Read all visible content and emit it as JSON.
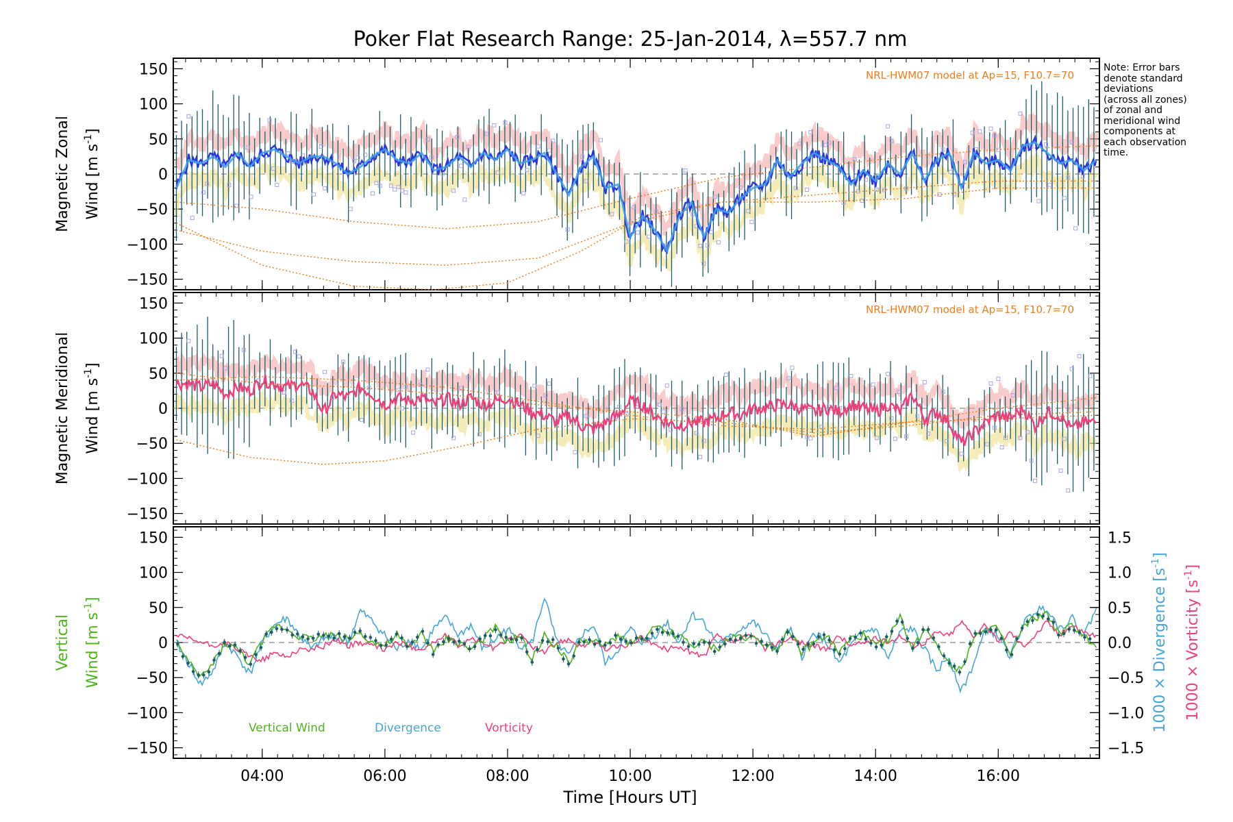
{
  "title": "Poker Flat Research Range: 25-Jan-2014, λ=557.7 nm",
  "note": [
    "Note: Error bars",
    "denote standard",
    "deviations",
    "(across all zones)",
    "of zonal and",
    "meridional wind",
    "components at",
    "each observation",
    "time."
  ],
  "colors": {
    "zonal": "#2a36e0",
    "zonal_light": "#3fa0e8",
    "meridional": "#f0407a",
    "vertical": "#4db51a",
    "divergence": "#45a6d6",
    "vorticity": "#f0407a",
    "model": "#f07d1a",
    "scatter": "#a9a6e6",
    "errorbar": "#1b5c66",
    "uncert_a": "#f5a0a0",
    "uncert_b": "#f0e08a"
  },
  "chart_data": [
    {
      "type": "line",
      "panel": "zonal",
      "ylabel_line1": "Magnetic Zonal",
      "ylabel_line2": "Wind [m s",
      "ylabel_sup": "-1",
      "ylabel_close": "]",
      "ylim": [
        -165,
        165
      ],
      "yticks": [
        -150,
        -100,
        -50,
        0,
        50,
        100,
        150
      ],
      "annotation": "NRL-HWM07 model at Ap=15, F10.7=70",
      "series": [
        {
          "x": [
            2.6,
            2.8,
            3.0,
            3.2,
            3.4,
            3.6,
            3.8,
            4.0,
            4.2,
            4.4,
            4.6,
            4.8,
            5.0,
            5.2,
            5.4,
            5.6,
            5.8,
            6.0,
            6.2,
            6.4,
            6.6,
            6.8,
            7.0,
            7.2,
            7.4,
            7.6,
            7.8,
            8.0,
            8.2,
            8.4,
            8.6,
            8.8,
            9.0,
            9.2,
            9.4,
            9.6,
            9.8,
            10.0,
            10.2,
            10.4,
            10.6,
            10.8,
            11.0,
            11.2,
            11.4,
            11.6,
            11.8,
            12.0,
            12.2,
            12.4,
            12.6,
            12.8,
            13.0,
            13.2,
            13.4,
            13.6,
            13.8,
            14.0,
            14.2,
            14.4,
            14.6,
            14.8,
            15.0,
            15.2,
            15.4,
            15.6,
            15.8,
            16.0,
            16.2,
            16.4,
            16.6,
            16.8,
            17.0,
            17.2,
            17.4,
            17.6
          ],
          "y": [
            -20,
            20,
            15,
            25,
            10,
            30,
            10,
            30,
            35,
            25,
            15,
            25,
            25,
            15,
            0,
            10,
            25,
            35,
            20,
            15,
            30,
            5,
            10,
            25,
            10,
            30,
            20,
            35,
            15,
            20,
            30,
            0,
            -30,
            10,
            25,
            -20,
            -15,
            -90,
            -60,
            -80,
            -110,
            -60,
            -40,
            -90,
            -50,
            -55,
            -35,
            -20,
            -15,
            20,
            -5,
            15,
            30,
            20,
            10,
            -15,
            5,
            -10,
            15,
            0,
            30,
            -10,
            20,
            30,
            -20,
            30,
            15,
            20,
            5,
            40,
            45,
            30,
            15,
            20,
            5,
            20
          ]
        },
        {
          "x": [
            2.6,
            4.0,
            5.5,
            7.0,
            8.5,
            10.0,
            11.5,
            13.0,
            14.5,
            16.0,
            17.6
          ],
          "y": [
            -40,
            -50,
            -68,
            -78,
            -68,
            -35,
            -5,
            10,
            25,
            35,
            40
          ]
        },
        {
          "x": [
            2.6,
            4.0,
            5.5,
            7.0,
            8.5,
            10.0,
            11.5,
            13.0,
            14.5,
            16.0,
            17.6
          ],
          "y": [
            -80,
            -110,
            -125,
            -130,
            -120,
            -70,
            -40,
            -40,
            -35,
            -20,
            -20
          ]
        },
        {
          "x": [
            2.6,
            4.0,
            5.5,
            6.8,
            8.0,
            9.2,
            10.2,
            11.5,
            13.0,
            14.5,
            16.0,
            17.6
          ],
          "y": [
            -70,
            -130,
            -160,
            -165,
            -155,
            -110,
            -60,
            -40,
            -30,
            -20,
            -10,
            -10
          ]
        }
      ]
    },
    {
      "type": "line",
      "panel": "meridional",
      "ylabel_line1": "Magnetic Meridional",
      "ylabel_line2": "Wind [m s",
      "ylabel_sup": "-1",
      "ylabel_close": "]",
      "ylim": [
        -165,
        165
      ],
      "yticks": [
        -150,
        -100,
        -50,
        0,
        50,
        100,
        150
      ],
      "annotation": "NRL-HWM07 model at Ap=15, F10.7=70",
      "series": [
        {
          "x": [
            2.6,
            2.8,
            3.0,
            3.2,
            3.4,
            3.6,
            3.8,
            4.0,
            4.2,
            4.4,
            4.6,
            4.8,
            5.0,
            5.2,
            5.4,
            5.6,
            5.8,
            6.0,
            6.2,
            6.4,
            6.6,
            6.8,
            7.0,
            7.2,
            7.4,
            7.6,
            7.8,
            8.0,
            8.2,
            8.4,
            8.6,
            8.8,
            9.0,
            9.2,
            9.4,
            9.6,
            9.8,
            10.0,
            10.2,
            10.4,
            10.6,
            10.8,
            11.0,
            11.2,
            11.4,
            11.6,
            11.8,
            12.0,
            12.2,
            12.4,
            12.6,
            12.8,
            13.0,
            13.2,
            13.4,
            13.6,
            13.8,
            14.0,
            14.2,
            14.4,
            14.6,
            14.8,
            15.0,
            15.2,
            15.4,
            15.6,
            15.8,
            16.0,
            16.2,
            16.4,
            16.6,
            16.8,
            17.0,
            17.2,
            17.4,
            17.6
          ],
          "y": [
            35,
            35,
            30,
            35,
            20,
            30,
            25,
            40,
            35,
            30,
            35,
            25,
            -5,
            20,
            15,
            30,
            20,
            5,
            15,
            10,
            15,
            5,
            15,
            5,
            15,
            5,
            10,
            15,
            5,
            -5,
            -10,
            -20,
            -10,
            -25,
            -30,
            -20,
            -10,
            10,
            5,
            -10,
            -20,
            -25,
            -20,
            -20,
            -15,
            -5,
            -10,
            0,
            0,
            5,
            5,
            0,
            -5,
            0,
            -5,
            5,
            0,
            -5,
            5,
            -5,
            20,
            -15,
            -5,
            -20,
            -50,
            -35,
            -20,
            -10,
            -15,
            0,
            -25,
            -5,
            -10,
            -30,
            -20,
            -20
          ]
        },
        {
          "x": [
            2.6,
            4.0,
            5.5,
            7.0,
            8.5,
            10.0,
            11.5,
            13.0,
            14.5,
            16.0,
            17.6
          ],
          "y": [
            40,
            45,
            40,
            30,
            10,
            -10,
            -25,
            -30,
            -20,
            -15,
            -10
          ]
        },
        {
          "x": [
            2.6,
            3.8,
            5.0,
            6.0,
            7.2,
            8.5,
            10.0,
            11.5,
            13.0,
            14.5,
            16.0,
            17.6
          ],
          "y": [
            -45,
            -70,
            -80,
            -75,
            -55,
            -30,
            -15,
            -20,
            -35,
            -25,
            -10,
            -5
          ]
        },
        {
          "x": [
            2.6,
            4.0,
            5.5,
            7.0,
            8.5,
            10.0,
            11.5,
            13.0,
            14.5,
            16.0,
            17.6
          ],
          "y": [
            50,
            35,
            30,
            20,
            5,
            -5,
            -15,
            -40,
            -20,
            0,
            15
          ]
        }
      ]
    },
    {
      "type": "line",
      "panel": "vertical",
      "ylabel_line1": "Vertical",
      "ylabel_line2": "Wind [m s",
      "ylabel_sup": "-1",
      "ylabel_close": "]",
      "ylim": [
        -165,
        165
      ],
      "yticks": [
        -150,
        -100,
        -50,
        0,
        50,
        100,
        150
      ],
      "xlabel": "Time [Hours UT]",
      "xlim": [
        2.55,
        17.65
      ],
      "xticks": [
        4,
        6,
        8,
        10,
        12,
        14,
        16
      ],
      "xticklabels": [
        "04:00",
        "06:00",
        "08:00",
        "10:00",
        "12:00",
        "14:00",
        "16:00"
      ],
      "right_axis": {
        "ylim": [
          -1.65,
          1.65
        ],
        "yticks": [
          -1.5,
          -1.0,
          -0.5,
          0.0,
          0.5,
          1.0,
          1.5
        ],
        "yticklabels": [
          "−1.5",
          "−1.0",
          "−0.5",
          "0.0",
          "0.5",
          "1.0",
          "1.5"
        ],
        "label_divergence": "1000 × Divergence [s",
        "label_vorticity": "1000 × Vorticity [s",
        "label_sup": "-1",
        "label_close": "]"
      },
      "legend": [
        "Vertical Wind",
        "Divergence",
        "Vorticity"
      ],
      "series": [
        {
          "name": "Vertical Wind",
          "x": [
            2.6,
            2.8,
            3.0,
            3.2,
            3.4,
            3.6,
            3.8,
            4.0,
            4.2,
            4.4,
            4.6,
            4.8,
            5.0,
            5.2,
            5.4,
            5.6,
            5.8,
            6.0,
            6.2,
            6.4,
            6.6,
            6.8,
            7.0,
            7.2,
            7.4,
            7.6,
            7.8,
            8.0,
            8.2,
            8.4,
            8.6,
            8.8,
            9.0,
            9.2,
            9.4,
            9.6,
            9.8,
            10.0,
            10.2,
            10.4,
            10.6,
            10.8,
            11.0,
            11.2,
            11.4,
            11.6,
            11.8,
            12.0,
            12.2,
            12.4,
            12.6,
            12.8,
            13.0,
            13.2,
            13.4,
            13.6,
            13.8,
            14.0,
            14.2,
            14.4,
            14.6,
            14.8,
            15.0,
            15.2,
            15.4,
            15.6,
            15.8,
            16.0,
            16.2,
            16.4,
            16.6,
            16.8,
            17.0,
            17.2,
            17.4,
            17.6
          ],
          "y": [
            0,
            -30,
            -50,
            -30,
            0,
            -10,
            -30,
            0,
            25,
            20,
            10,
            5,
            10,
            10,
            5,
            15,
            0,
            -5,
            10,
            -10,
            15,
            -15,
            5,
            0,
            -10,
            5,
            20,
            0,
            10,
            -25,
            10,
            -5,
            -30,
            5,
            0,
            -5,
            10,
            0,
            5,
            20,
            15,
            10,
            -5,
            0,
            -10,
            5,
            10,
            5,
            0,
            -10,
            20,
            -15,
            0,
            10,
            -15,
            5,
            10,
            -5,
            5,
            35,
            -10,
            20,
            0,
            -30,
            -40,
            10,
            15,
            20,
            -20,
            20,
            35,
            40,
            10,
            25,
            10,
            -10
          ]
        },
        {
          "name": "Divergence",
          "x": [
            2.6,
            2.8,
            3.0,
            3.2,
            3.4,
            3.6,
            3.8,
            4.0,
            4.2,
            4.4,
            4.6,
            4.8,
            5.0,
            5.2,
            5.4,
            5.6,
            5.8,
            6.0,
            6.2,
            6.4,
            6.6,
            6.8,
            7.0,
            7.2,
            7.4,
            7.6,
            7.8,
            8.0,
            8.2,
            8.4,
            8.6,
            8.8,
            9.0,
            9.2,
            9.4,
            9.6,
            9.8,
            10.0,
            10.2,
            10.4,
            10.6,
            10.8,
            11.0,
            11.2,
            11.4,
            11.6,
            11.8,
            12.0,
            12.2,
            12.4,
            12.6,
            12.8,
            13.0,
            13.2,
            13.4,
            13.6,
            13.8,
            14.0,
            14.2,
            14.4,
            14.6,
            14.8,
            15.0,
            15.2,
            15.4,
            15.6,
            15.8,
            16.0,
            16.2,
            16.4,
            16.6,
            16.8,
            17.0,
            17.2,
            17.4,
            17.6
          ],
          "y": [
            0.0,
            -0.3,
            -0.6,
            -0.4,
            0.0,
            -0.2,
            -0.45,
            0.0,
            0.25,
            0.35,
            0.1,
            -0.1,
            0.05,
            0.1,
            0.0,
            0.45,
            0.3,
            0.1,
            -0.1,
            0.05,
            -0.1,
            0.2,
            0.35,
            0.1,
            0.25,
            -0.1,
            0.05,
            0.2,
            -0.05,
            0.0,
            0.65,
            0.0,
            -0.2,
            0.1,
            0.25,
            -0.3,
            -0.1,
            0.2,
            0.0,
            0.1,
            0.3,
            0.0,
            0.4,
            0.3,
            0.0,
            0.05,
            0.2,
            0.3,
            0.1,
            -0.1,
            0.2,
            -0.2,
            0.15,
            0.0,
            -0.3,
            -0.05,
            0.15,
            0.2,
            -0.25,
            0.15,
            0.2,
            -0.1,
            -0.4,
            -0.2,
            -0.7,
            -0.3,
            0.2,
            0.1,
            -0.2,
            0.25,
            0.45,
            0.5,
            0.2,
            0.35,
            0.1,
            0.5
          ]
        },
        {
          "name": "Vorticity",
          "x": [
            2.6,
            2.8,
            3.0,
            3.2,
            3.4,
            3.6,
            3.8,
            4.0,
            4.2,
            4.4,
            4.6,
            4.8,
            5.0,
            5.2,
            5.4,
            5.6,
            5.8,
            6.0,
            6.2,
            6.4,
            6.6,
            6.8,
            7.0,
            7.2,
            7.4,
            7.6,
            7.8,
            8.0,
            8.2,
            8.4,
            8.6,
            8.8,
            9.0,
            9.2,
            9.4,
            9.6,
            9.8,
            10.0,
            10.2,
            10.4,
            10.6,
            10.8,
            11.0,
            11.2,
            11.4,
            11.6,
            11.8,
            12.0,
            12.2,
            12.4,
            12.6,
            12.8,
            13.0,
            13.2,
            13.4,
            13.6,
            13.8,
            14.0,
            14.2,
            14.4,
            14.6,
            14.8,
            15.0,
            15.2,
            15.4,
            15.6,
            15.8,
            16.0,
            16.2,
            16.4,
            16.6,
            16.8,
            17.0,
            17.2,
            17.4,
            17.6
          ],
          "y": [
            0.1,
            0.05,
            0.0,
            -0.05,
            0.0,
            -0.1,
            -0.2,
            -0.25,
            -0.15,
            -0.2,
            -0.1,
            -0.1,
            -0.05,
            0.05,
            -0.05,
            0.0,
            -0.05,
            -0.1,
            0.0,
            -0.05,
            -0.1,
            0.0,
            0.1,
            -0.05,
            0.05,
            0.0,
            -0.1,
            0.05,
            0.1,
            -0.05,
            -0.15,
            0.0,
            0.05,
            -0.05,
            0.0,
            -0.1,
            -0.05,
            -0.05,
            0.1,
            -0.05,
            -0.1,
            -0.05,
            -0.15,
            -0.2,
            0.1,
            0.0,
            0.05,
            0.1,
            -0.1,
            0.0,
            0.05,
            0.0,
            -0.05,
            -0.1,
            0.1,
            -0.05,
            0.0,
            0.05,
            0.0,
            0.1,
            -0.05,
            0.0,
            0.15,
            0.1,
            0.3,
            0.1,
            0.25,
            0.0,
            0.15,
            -0.05,
            0.1,
            0.3,
            0.1,
            0.25,
            0.15,
            0.1
          ]
        }
      ]
    }
  ]
}
